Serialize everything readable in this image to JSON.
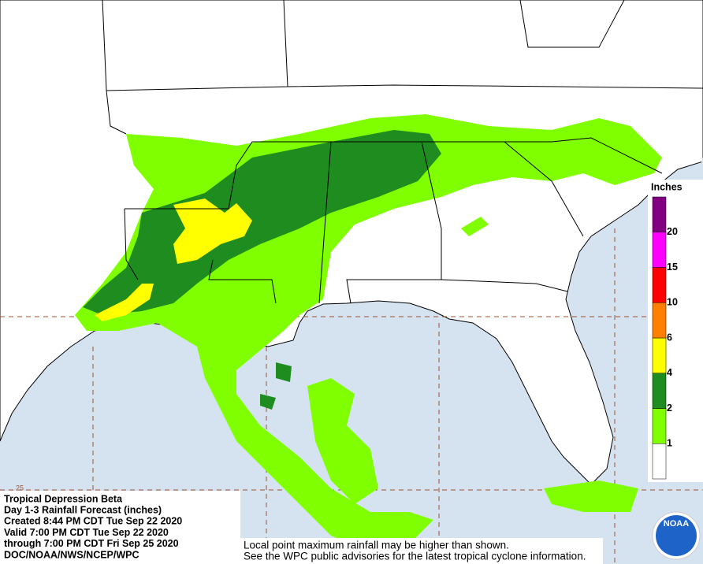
{
  "info": {
    "lines": [
      "Tropical Depression Beta",
      "Day 1-3 Rainfall Forecast (inches)",
      "Created 8:44 PM CDT Tue Sep 22 2020",
      "Valid 7:00 PM CDT Tue Sep 22 2020",
      "through 7:00 PM CDT Fri Sep 25 2020",
      "DOC/NOAA/NWS/NCEP/WPC"
    ]
  },
  "note": {
    "lines": [
      "Local point maximum rainfall may be higher than shown.",
      "See the WPC public advisories for the latest tropical cyclone information."
    ]
  },
  "legend": {
    "title": "Inches",
    "colors": [
      "#ffffff",
      "#80ff00",
      "#1e8c1e",
      "#ffff00",
      "#ff8000",
      "#ff0000",
      "#ff00ff",
      "#800080"
    ],
    "levels": [
      1,
      2,
      4,
      6,
      10,
      15,
      20
    ]
  },
  "logo": {
    "text": "NOAA"
  },
  "grid_label": {
    "text": "25"
  }
}
